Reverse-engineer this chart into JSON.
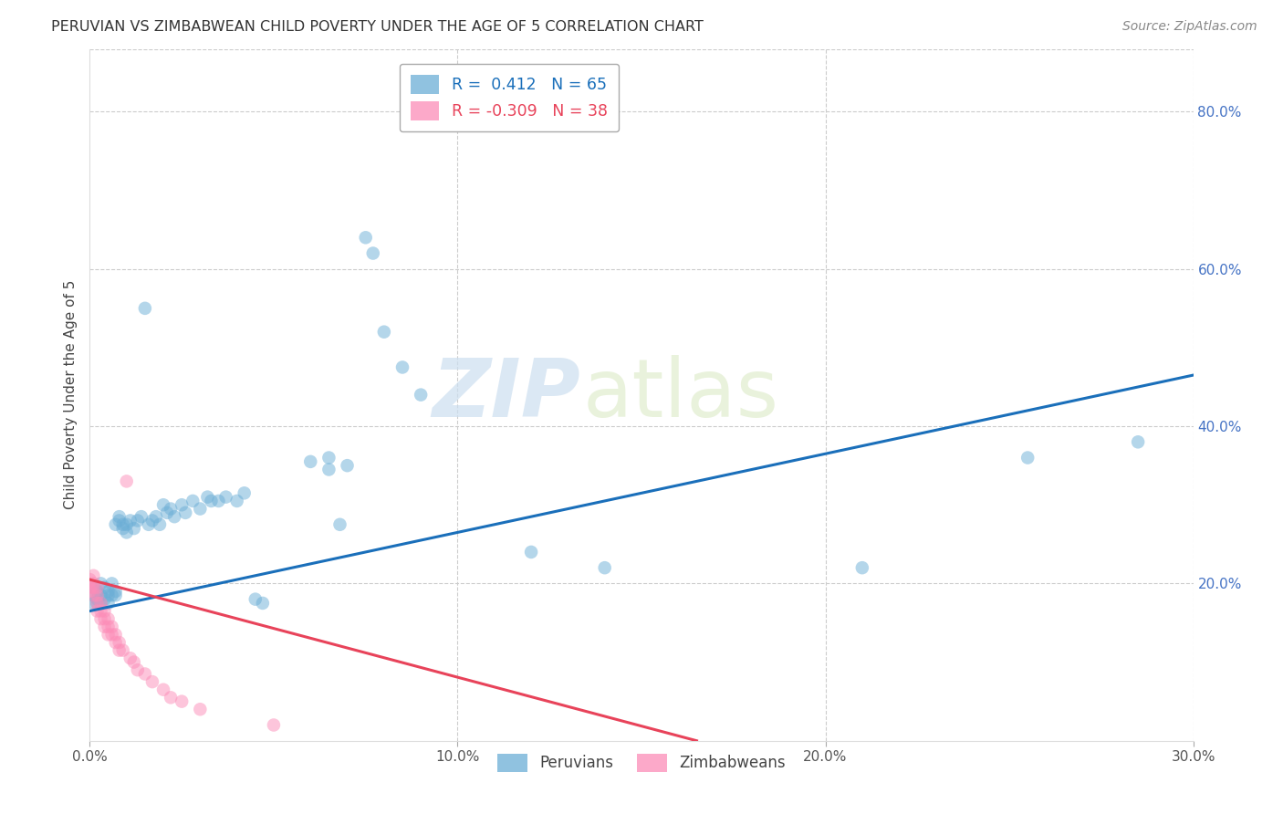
{
  "title": "PERUVIAN VS ZIMBABWEAN CHILD POVERTY UNDER THE AGE OF 5 CORRELATION CHART",
  "source": "Source: ZipAtlas.com",
  "ylabel": "Child Poverty Under the Age of 5",
  "xlim": [
    0.0,
    0.3
  ],
  "ylim": [
    0.0,
    0.88
  ],
  "right_yticks": [
    0.0,
    0.2,
    0.4,
    0.6,
    0.8
  ],
  "right_yticklabels": [
    "",
    "20.0%",
    "40.0%",
    "60.0%",
    "80.0%"
  ],
  "xticks": [
    0.0,
    0.1,
    0.2,
    0.3
  ],
  "xticklabels": [
    "0.0%",
    "10.0%",
    "20.0%",
    "30.0%"
  ],
  "blue_R": 0.412,
  "blue_N": 65,
  "pink_R": -0.309,
  "pink_N": 38,
  "blue_color": "#6baed6",
  "pink_color": "#fc8db8",
  "trend_blue": "#1a6fba",
  "trend_pink": "#e8435a",
  "watermark_zip": "ZIP",
  "watermark_atlas": "atlas",
  "background_color": "#ffffff",
  "blue_trend_x": [
    0.0,
    0.3
  ],
  "blue_trend_y": [
    0.165,
    0.465
  ],
  "pink_trend_x": [
    0.0,
    0.165
  ],
  "pink_trend_y": [
    0.205,
    0.0
  ],
  "blue_scatter": [
    [
      0.001,
      0.175
    ],
    [
      0.001,
      0.195
    ],
    [
      0.001,
      0.185
    ],
    [
      0.002,
      0.18
    ],
    [
      0.002,
      0.175
    ],
    [
      0.002,
      0.19
    ],
    [
      0.003,
      0.185
    ],
    [
      0.003,
      0.175
    ],
    [
      0.003,
      0.2
    ],
    [
      0.004,
      0.18
    ],
    [
      0.004,
      0.195
    ],
    [
      0.005,
      0.19
    ],
    [
      0.005,
      0.185
    ],
    [
      0.005,
      0.175
    ],
    [
      0.006,
      0.2
    ],
    [
      0.006,
      0.185
    ],
    [
      0.007,
      0.19
    ],
    [
      0.007,
      0.185
    ],
    [
      0.007,
      0.275
    ],
    [
      0.008,
      0.28
    ],
    [
      0.008,
      0.285
    ],
    [
      0.009,
      0.275
    ],
    [
      0.009,
      0.27
    ],
    [
      0.01,
      0.275
    ],
    [
      0.01,
      0.265
    ],
    [
      0.011,
      0.28
    ],
    [
      0.012,
      0.27
    ],
    [
      0.013,
      0.28
    ],
    [
      0.014,
      0.285
    ],
    [
      0.015,
      0.55
    ],
    [
      0.016,
      0.275
    ],
    [
      0.017,
      0.28
    ],
    [
      0.018,
      0.285
    ],
    [
      0.019,
      0.275
    ],
    [
      0.02,
      0.3
    ],
    [
      0.021,
      0.29
    ],
    [
      0.022,
      0.295
    ],
    [
      0.023,
      0.285
    ],
    [
      0.025,
      0.3
    ],
    [
      0.026,
      0.29
    ],
    [
      0.028,
      0.305
    ],
    [
      0.03,
      0.295
    ],
    [
      0.032,
      0.31
    ],
    [
      0.033,
      0.305
    ],
    [
      0.035,
      0.305
    ],
    [
      0.037,
      0.31
    ],
    [
      0.04,
      0.305
    ],
    [
      0.042,
      0.315
    ],
    [
      0.045,
      0.18
    ],
    [
      0.047,
      0.175
    ],
    [
      0.06,
      0.355
    ],
    [
      0.065,
      0.36
    ],
    [
      0.065,
      0.345
    ],
    [
      0.068,
      0.275
    ],
    [
      0.07,
      0.35
    ],
    [
      0.075,
      0.64
    ],
    [
      0.077,
      0.62
    ],
    [
      0.08,
      0.52
    ],
    [
      0.085,
      0.475
    ],
    [
      0.09,
      0.44
    ],
    [
      0.12,
      0.24
    ],
    [
      0.14,
      0.22
    ],
    [
      0.21,
      0.22
    ],
    [
      0.255,
      0.36
    ],
    [
      0.285,
      0.38
    ]
  ],
  "pink_scatter": [
    [
      0.0,
      0.195
    ],
    [
      0.0,
      0.205
    ],
    [
      0.0,
      0.19
    ],
    [
      0.001,
      0.195
    ],
    [
      0.001,
      0.21
    ],
    [
      0.001,
      0.2
    ],
    [
      0.001,
      0.185
    ],
    [
      0.002,
      0.195
    ],
    [
      0.002,
      0.185
    ],
    [
      0.002,
      0.175
    ],
    [
      0.002,
      0.165
    ],
    [
      0.003,
      0.175
    ],
    [
      0.003,
      0.165
    ],
    [
      0.003,
      0.155
    ],
    [
      0.004,
      0.165
    ],
    [
      0.004,
      0.155
    ],
    [
      0.004,
      0.145
    ],
    [
      0.005,
      0.155
    ],
    [
      0.005,
      0.145
    ],
    [
      0.005,
      0.135
    ],
    [
      0.006,
      0.145
    ],
    [
      0.006,
      0.135
    ],
    [
      0.007,
      0.135
    ],
    [
      0.007,
      0.125
    ],
    [
      0.008,
      0.125
    ],
    [
      0.008,
      0.115
    ],
    [
      0.009,
      0.115
    ],
    [
      0.01,
      0.33
    ],
    [
      0.011,
      0.105
    ],
    [
      0.012,
      0.1
    ],
    [
      0.013,
      0.09
    ],
    [
      0.015,
      0.085
    ],
    [
      0.017,
      0.075
    ],
    [
      0.02,
      0.065
    ],
    [
      0.022,
      0.055
    ],
    [
      0.025,
      0.05
    ],
    [
      0.03,
      0.04
    ],
    [
      0.05,
      0.02
    ]
  ]
}
